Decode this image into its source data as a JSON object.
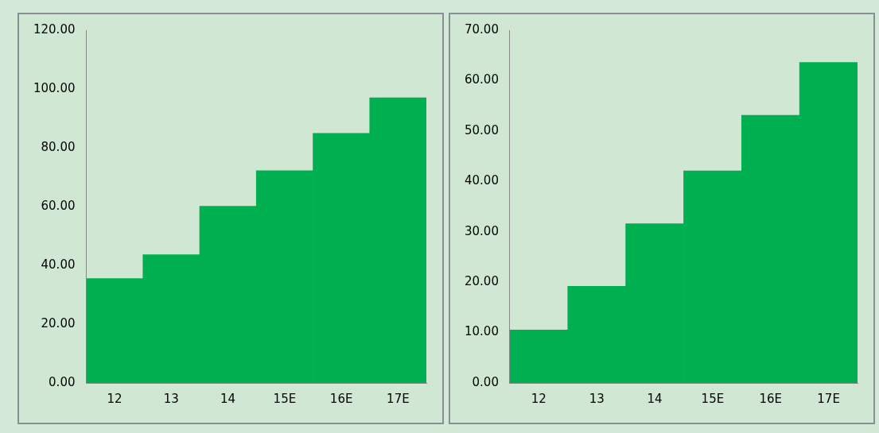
{
  "chart_data": [
    {
      "type": "bar",
      "categories": [
        "12",
        "13",
        "14",
        "15E",
        "16E",
        "17E"
      ],
      "values": [
        35.5,
        43.6,
        60.1,
        72.2,
        84.9,
        97.0
      ],
      "color": "#00b050",
      "ylim": [
        0,
        120
      ],
      "yticks": [
        {
          "value": 0,
          "label": "0.00"
        },
        {
          "value": 20,
          "label": "20.00"
        },
        {
          "value": 40,
          "label": "40.00"
        },
        {
          "value": 60,
          "label": "60.00"
        },
        {
          "value": 80,
          "label": "80.00"
        },
        {
          "value": 100,
          "label": "100.00"
        },
        {
          "value": 120,
          "label": "120.00"
        }
      ],
      "grid": false,
      "legend": false
    },
    {
      "type": "bar",
      "categories": [
        "12",
        "13",
        "14",
        "15E",
        "16E",
        "17E"
      ],
      "values": [
        10.5,
        19.2,
        31.6,
        42.1,
        53.1,
        63.6
      ],
      "color": "#00b050",
      "ylim": [
        0,
        70
      ],
      "yticks": [
        {
          "value": 0,
          "label": "0.00"
        },
        {
          "value": 10,
          "label": "10.00"
        },
        {
          "value": 20,
          "label": "20.00"
        },
        {
          "value": 30,
          "label": "30.00"
        },
        {
          "value": 40,
          "label": "40.00"
        },
        {
          "value": 50,
          "label": "50.00"
        },
        {
          "value": 60,
          "label": "60.00"
        },
        {
          "value": 70,
          "label": "70.00"
        }
      ],
      "grid": false,
      "legend": false
    }
  ]
}
